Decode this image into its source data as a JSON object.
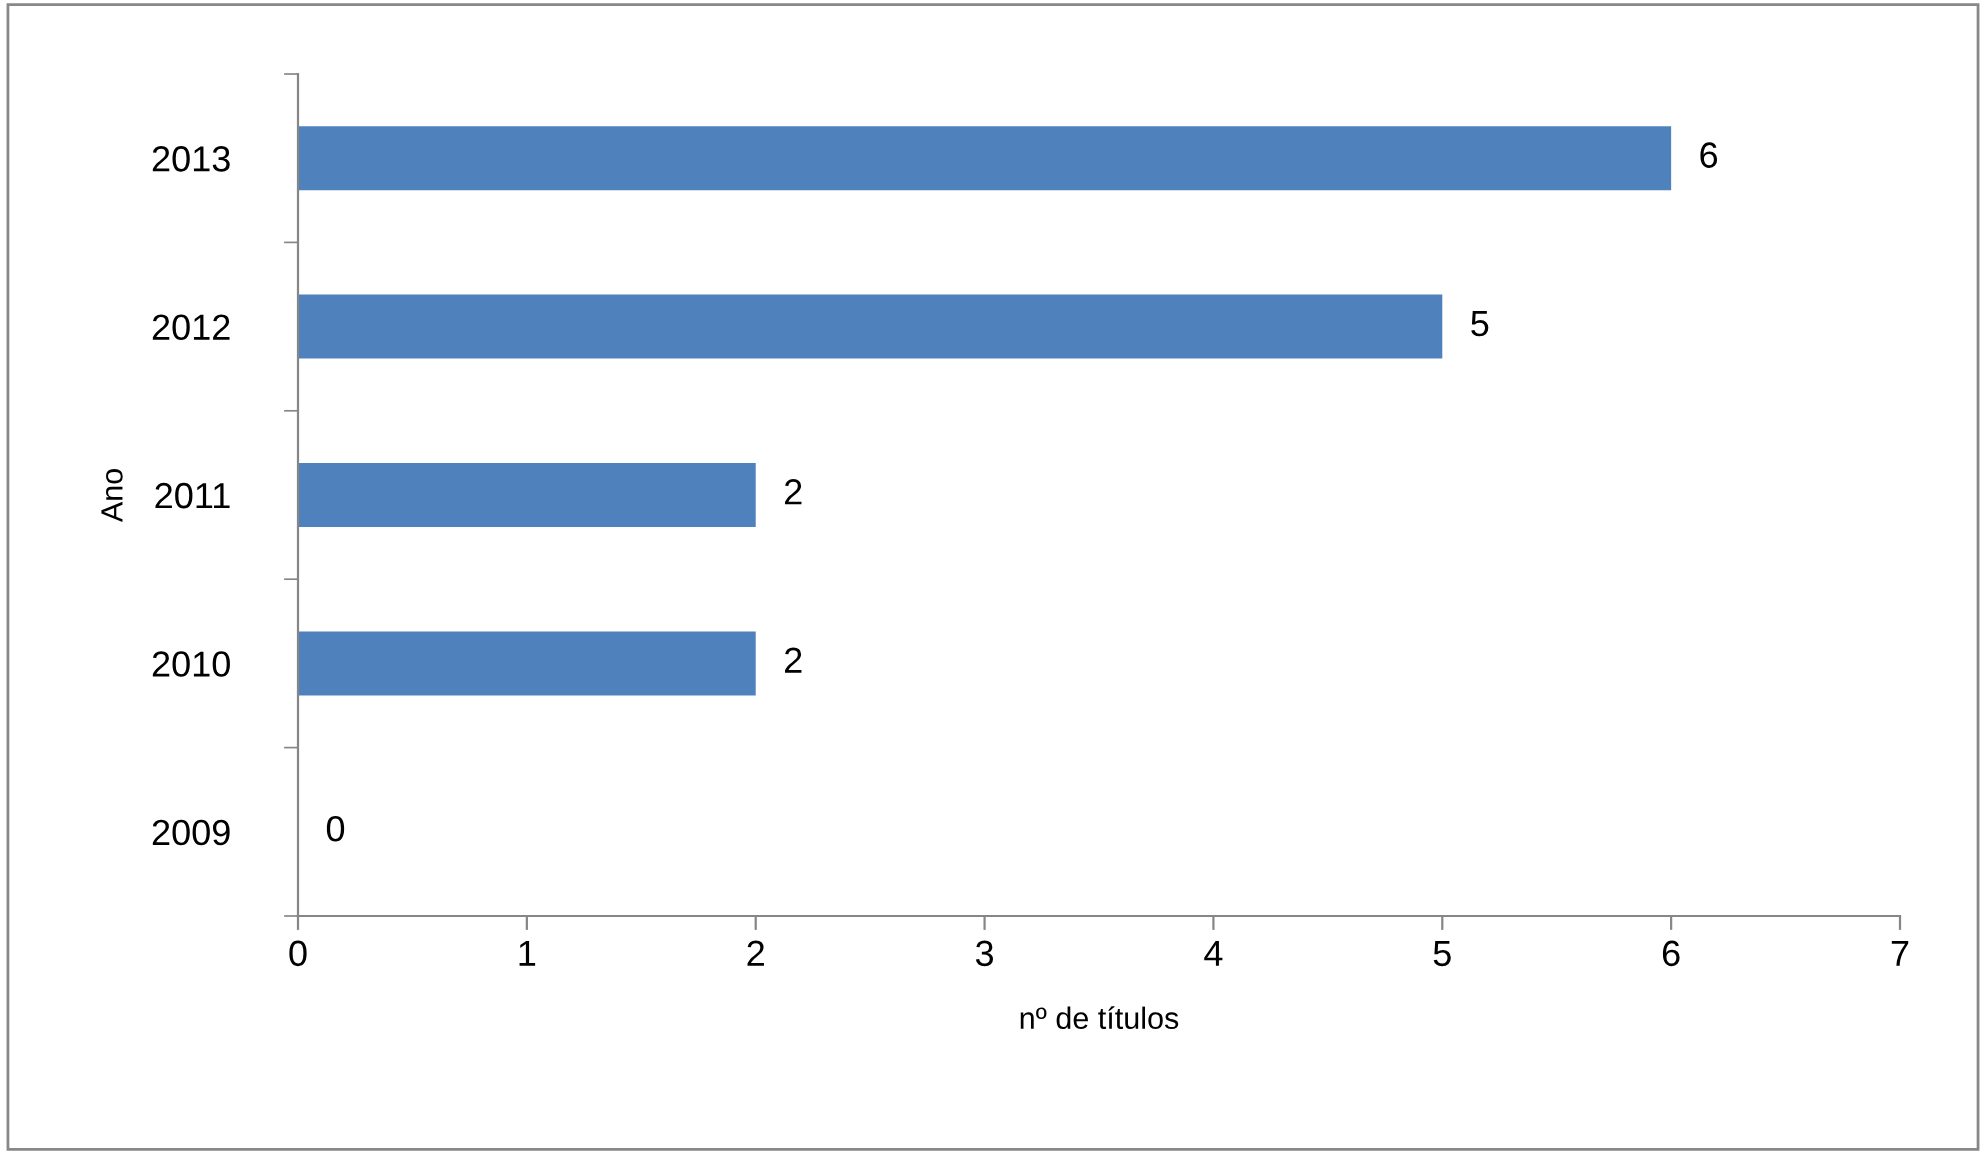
{
  "chart_data": {
    "type": "bar",
    "orientation": "horizontal",
    "xlabel": "nº de títulos",
    "ylabel": "Ano",
    "categories": [
      "2013",
      "2012",
      "2011",
      "2010",
      "2009"
    ],
    "values": [
      6,
      5,
      2,
      2,
      0
    ],
    "color": "#4f81bd",
    "xlim": [
      0,
      7
    ],
    "xticks": [
      0,
      1,
      2,
      3,
      4,
      5,
      6,
      7
    ],
    "grid": false,
    "data_labels": true
  }
}
